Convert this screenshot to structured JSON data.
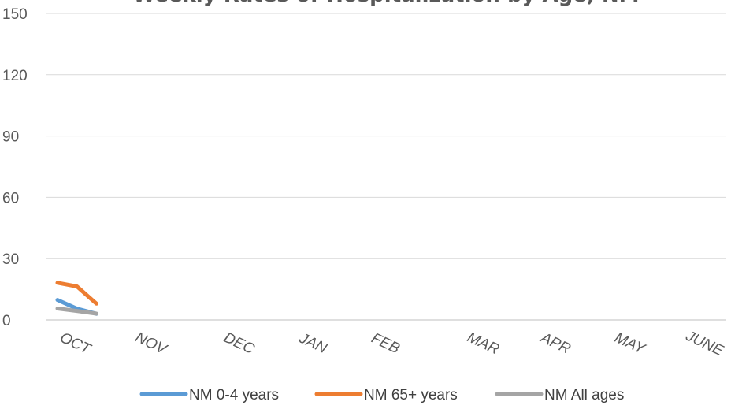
{
  "chart_data": {
    "type": "line",
    "title": "Weekly Rates of Hospitalization by Age, NM",
    "xlabel": "",
    "ylabel": "",
    "ylim": [
      0,
      150
    ],
    "yticks": [
      0,
      30,
      60,
      90,
      120,
      150
    ],
    "x_tick_labels": [
      "OCT",
      "NOV",
      "DEC",
      "JAN",
      "FEB",
      "MAR",
      "APR",
      "MAY",
      "JUNE"
    ],
    "grid": true,
    "legend_position": "bottom",
    "week_count": 38,
    "series": [
      {
        "name": "NM 0-4 years",
        "color": "#5b9bd5",
        "values": [
          9.8,
          5.5,
          3.0
        ]
      },
      {
        "name": "NM 65+ years",
        "color": "#ed7d31",
        "values": [
          18.2,
          16.4,
          8.0
        ]
      },
      {
        "name": "NM All ages",
        "color": "#a5a5a5",
        "values": [
          5.6,
          4.4,
          3.1
        ]
      }
    ]
  }
}
